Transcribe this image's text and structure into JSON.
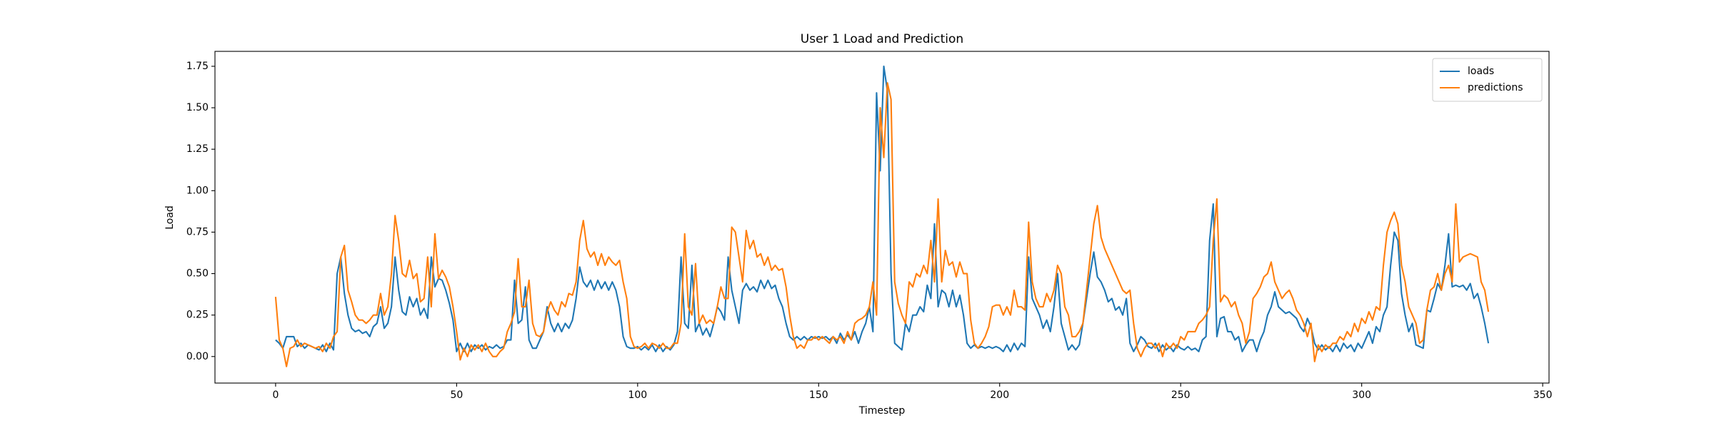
{
  "chart_data": {
    "type": "line",
    "title": "User 1 Load and Prediction",
    "x_label": "Timestep",
    "y_label": "Load",
    "x": [
      0,
      1,
      2,
      3,
      4,
      5,
      6,
      7,
      8,
      9,
      10,
      11,
      12,
      13,
      14,
      15,
      16,
      17,
      18,
      19,
      20,
      21,
      22,
      23,
      24,
      25,
      26,
      27,
      28,
      29,
      30,
      31,
      32,
      33,
      34,
      35,
      36,
      37,
      38,
      39,
      40,
      41,
      42,
      43,
      44,
      45,
      46,
      47,
      48,
      49,
      50,
      51,
      52,
      53,
      54,
      55,
      56,
      57,
      58,
      59,
      60,
      61,
      62,
      63,
      64,
      65,
      66,
      67,
      68,
      69,
      70,
      71,
      72,
      73,
      74,
      75,
      76,
      77,
      78,
      79,
      80,
      81,
      82,
      83,
      84,
      85,
      86,
      87,
      88,
      89,
      90,
      91,
      92,
      93,
      94,
      95,
      96,
      97,
      98,
      99,
      100,
      101,
      102,
      103,
      104,
      105,
      106,
      107,
      108,
      109,
      110,
      111,
      112,
      113,
      114,
      115,
      116,
      117,
      118,
      119,
      120,
      121,
      122,
      123,
      124,
      125,
      126,
      127,
      128,
      129,
      130,
      131,
      132,
      133,
      134,
      135,
      136,
      137,
      138,
      139,
      140,
      141,
      142,
      143,
      144,
      145,
      146,
      147,
      148,
      149,
      150,
      151,
      152,
      153,
      154,
      155,
      156,
      157,
      158,
      159,
      160,
      161,
      162,
      163,
      164,
      165,
      166,
      167,
      168,
      169,
      170,
      171,
      172,
      173,
      174,
      175,
      176,
      177,
      178,
      179,
      180,
      181,
      182,
      183,
      184,
      185,
      186,
      187,
      188,
      189,
      190,
      191,
      192,
      193,
      194,
      195,
      196,
      197,
      198,
      199,
      200,
      201,
      202,
      203,
      204,
      205,
      206,
      207,
      208,
      209,
      210,
      211,
      212,
      213,
      214,
      215,
      216,
      217,
      218,
      219,
      220,
      221,
      222,
      223,
      224,
      225,
      226,
      227,
      228,
      229,
      230,
      231,
      232,
      233,
      234,
      235,
      236,
      237,
      238,
      239,
      240,
      241,
      242,
      243,
      244,
      245,
      246,
      247,
      248,
      249,
      250,
      251,
      252,
      253,
      254,
      255,
      256,
      257,
      258,
      259,
      260,
      261,
      262,
      263,
      264,
      265,
      266,
      267,
      268,
      269,
      270,
      271,
      272,
      273,
      274,
      275,
      276,
      277,
      278,
      279,
      280,
      281,
      282,
      283,
      284,
      285,
      286,
      287,
      288,
      289,
      290,
      291,
      292,
      293,
      294,
      295,
      296,
      297,
      298,
      299,
      300,
      301,
      302,
      303,
      304,
      305,
      306,
      307,
      308,
      309,
      310,
      311,
      312,
      313,
      314,
      315,
      316,
      317,
      318,
      319,
      320,
      321,
      322,
      323,
      324,
      325,
      326,
      327,
      328,
      329,
      330,
      331,
      332,
      333,
      334,
      335
    ],
    "series": [
      {
        "name": "loads",
        "color": "#1f77b4",
        "values": [
          0.1,
          0.08,
          0.05,
          0.12,
          0.12,
          0.12,
          0.06,
          0.08,
          0.05,
          0.07,
          0.06,
          0.05,
          0.04,
          0.07,
          0.03,
          0.08,
          0.04,
          0.5,
          0.6,
          0.38,
          0.25,
          0.17,
          0.15,
          0.16,
          0.14,
          0.15,
          0.12,
          0.18,
          0.2,
          0.3,
          0.17,
          0.2,
          0.3,
          0.6,
          0.4,
          0.27,
          0.25,
          0.36,
          0.3,
          0.35,
          0.25,
          0.29,
          0.23,
          0.6,
          0.42,
          0.47,
          0.46,
          0.4,
          0.32,
          0.22,
          0.03,
          0.08,
          0.03,
          0.08,
          0.03,
          0.07,
          0.05,
          0.07,
          0.04,
          0.06,
          0.05,
          0.07,
          0.05,
          0.06,
          0.1,
          0.1,
          0.46,
          0.2,
          0.22,
          0.42,
          0.1,
          0.05,
          0.05,
          0.1,
          0.15,
          0.3,
          0.2,
          0.15,
          0.2,
          0.15,
          0.2,
          0.17,
          0.22,
          0.35,
          0.54,
          0.45,
          0.42,
          0.46,
          0.4,
          0.46,
          0.41,
          0.45,
          0.4,
          0.45,
          0.4,
          0.3,
          0.12,
          0.06,
          0.05,
          0.05,
          0.06,
          0.04,
          0.06,
          0.04,
          0.07,
          0.03,
          0.07,
          0.03,
          0.06,
          0.04,
          0.07,
          0.15,
          0.6,
          0.2,
          0.17,
          0.55,
          0.15,
          0.2,
          0.13,
          0.17,
          0.12,
          0.2,
          0.3,
          0.27,
          0.22,
          0.6,
          0.4,
          0.3,
          0.2,
          0.4,
          0.44,
          0.4,
          0.42,
          0.39,
          0.46,
          0.41,
          0.46,
          0.41,
          0.43,
          0.35,
          0.3,
          0.2,
          0.12,
          0.1,
          0.12,
          0.1,
          0.12,
          0.1,
          0.12,
          0.11,
          0.12,
          0.11,
          0.12,
          0.1,
          0.12,
          0.08,
          0.14,
          0.1,
          0.13,
          0.1,
          0.15,
          0.08,
          0.15,
          0.2,
          0.3,
          0.15,
          1.59,
          1.12,
          1.75,
          1.6,
          0.5,
          0.08,
          0.06,
          0.04,
          0.2,
          0.15,
          0.25,
          0.25,
          0.3,
          0.27,
          0.43,
          0.35,
          0.8,
          0.3,
          0.4,
          0.38,
          0.3,
          0.4,
          0.3,
          0.37,
          0.25,
          0.08,
          0.05,
          0.07,
          0.05,
          0.06,
          0.05,
          0.06,
          0.05,
          0.06,
          0.05,
          0.03,
          0.07,
          0.03,
          0.08,
          0.04,
          0.08,
          0.06,
          0.6,
          0.35,
          0.3,
          0.25,
          0.17,
          0.22,
          0.15,
          0.3,
          0.5,
          0.2,
          0.12,
          0.04,
          0.07,
          0.04,
          0.07,
          0.2,
          0.35,
          0.5,
          0.63,
          0.48,
          0.45,
          0.4,
          0.33,
          0.35,
          0.28,
          0.3,
          0.25,
          0.35,
          0.08,
          0.03,
          0.07,
          0.12,
          0.1,
          0.06,
          0.05,
          0.08,
          0.03,
          0.07,
          0.04,
          0.06,
          0.03,
          0.07,
          0.05,
          0.04,
          0.06,
          0.04,
          0.05,
          0.03,
          0.1,
          0.12,
          0.7,
          0.92,
          0.12,
          0.23,
          0.24,
          0.15,
          0.15,
          0.1,
          0.12,
          0.03,
          0.07,
          0.1,
          0.1,
          0.03,
          0.1,
          0.15,
          0.25,
          0.3,
          0.39,
          0.3,
          0.28,
          0.26,
          0.27,
          0.25,
          0.23,
          0.18,
          0.15,
          0.23,
          0.18,
          0.08,
          0.04,
          0.07,
          0.04,
          0.06,
          0.03,
          0.07,
          0.03,
          0.08,
          0.05,
          0.07,
          0.03,
          0.08,
          0.05,
          0.1,
          0.15,
          0.08,
          0.18,
          0.15,
          0.25,
          0.3,
          0.55,
          0.75,
          0.7,
          0.38,
          0.25,
          0.15,
          0.2,
          0.07,
          0.06,
          0.05,
          0.28,
          0.27,
          0.35,
          0.44,
          0.4,
          0.55,
          0.74,
          0.42,
          0.43,
          0.42,
          0.43,
          0.4,
          0.44,
          0.35,
          0.38,
          0.3,
          0.2,
          0.08
        ]
      },
      {
        "name": "predictions",
        "color": "#ff7f0e",
        "values": [
          0.36,
          0.1,
          0.05,
          -0.06,
          0.05,
          0.06,
          0.1,
          0.06,
          0.08,
          0.07,
          0.06,
          0.05,
          0.06,
          0.03,
          0.08,
          0.05,
          0.12,
          0.15,
          0.6,
          0.67,
          0.4,
          0.33,
          0.25,
          0.22,
          0.22,
          0.2,
          0.22,
          0.25,
          0.25,
          0.38,
          0.25,
          0.3,
          0.5,
          0.85,
          0.7,
          0.5,
          0.48,
          0.58,
          0.47,
          0.5,
          0.33,
          0.35,
          0.6,
          0.3,
          0.74,
          0.47,
          0.52,
          0.48,
          0.42,
          0.3,
          0.15,
          -0.02,
          0.05,
          0.0,
          0.07,
          0.04,
          0.07,
          0.03,
          0.08,
          0.03,
          0.0,
          0.0,
          0.03,
          0.05,
          0.15,
          0.2,
          0.27,
          0.59,
          0.3,
          0.3,
          0.46,
          0.2,
          0.13,
          0.12,
          0.15,
          0.27,
          0.33,
          0.28,
          0.25,
          0.33,
          0.3,
          0.38,
          0.37,
          0.45,
          0.7,
          0.82,
          0.65,
          0.6,
          0.63,
          0.55,
          0.62,
          0.55,
          0.6,
          0.57,
          0.55,
          0.58,
          0.45,
          0.35,
          0.12,
          0.06,
          0.05,
          0.06,
          0.08,
          0.05,
          0.08,
          0.07,
          0.05,
          0.08,
          0.05,
          0.05,
          0.08,
          0.08,
          0.2,
          0.74,
          0.3,
          0.25,
          0.56,
          0.2,
          0.25,
          0.2,
          0.22,
          0.2,
          0.3,
          0.42,
          0.35,
          0.35,
          0.78,
          0.75,
          0.6,
          0.45,
          0.76,
          0.65,
          0.7,
          0.6,
          0.62,
          0.55,
          0.6,
          0.52,
          0.55,
          0.52,
          0.53,
          0.42,
          0.25,
          0.12,
          0.05,
          0.07,
          0.05,
          0.1,
          0.1,
          0.12,
          0.1,
          0.12,
          0.1,
          0.08,
          0.12,
          0.1,
          0.12,
          0.08,
          0.15,
          0.1,
          0.2,
          0.22,
          0.23,
          0.25,
          0.3,
          0.45,
          0.25,
          1.5,
          1.2,
          1.65,
          1.55,
          0.45,
          0.32,
          0.25,
          0.2,
          0.45,
          0.42,
          0.5,
          0.48,
          0.55,
          0.5,
          0.7,
          0.45,
          0.95,
          0.45,
          0.64,
          0.55,
          0.57,
          0.48,
          0.57,
          0.5,
          0.5,
          0.22,
          0.08,
          0.05,
          0.08,
          0.12,
          0.18,
          0.3,
          0.31,
          0.31,
          0.25,
          0.3,
          0.25,
          0.4,
          0.3,
          0.3,
          0.28,
          0.81,
          0.45,
          0.35,
          0.3,
          0.3,
          0.38,
          0.33,
          0.4,
          0.55,
          0.5,
          0.3,
          0.25,
          0.12,
          0.12,
          0.15,
          0.2,
          0.4,
          0.6,
          0.8,
          0.91,
          0.72,
          0.65,
          0.6,
          0.55,
          0.5,
          0.45,
          0.4,
          0.38,
          0.4,
          0.2,
          0.05,
          0.0,
          0.05,
          0.08,
          0.08,
          0.05,
          0.08,
          0.0,
          0.08,
          0.05,
          0.08,
          0.05,
          0.12,
          0.1,
          0.15,
          0.15,
          0.15,
          0.2,
          0.22,
          0.25,
          0.3,
          0.7,
          0.95,
          0.33,
          0.37,
          0.35,
          0.3,
          0.33,
          0.25,
          0.2,
          0.08,
          0.15,
          0.35,
          0.38,
          0.42,
          0.48,
          0.5,
          0.57,
          0.45,
          0.4,
          0.35,
          0.38,
          0.4,
          0.35,
          0.28,
          0.25,
          0.2,
          0.12,
          0.2,
          -0.03,
          0.07,
          0.03,
          0.07,
          0.05,
          0.08,
          0.08,
          0.12,
          0.1,
          0.15,
          0.12,
          0.2,
          0.15,
          0.23,
          0.2,
          0.27,
          0.22,
          0.3,
          0.28,
          0.55,
          0.75,
          0.82,
          0.87,
          0.8,
          0.55,
          0.45,
          0.3,
          0.25,
          0.2,
          0.08,
          0.1,
          0.28,
          0.4,
          0.42,
          0.5,
          0.4,
          0.5,
          0.55,
          0.45,
          0.92,
          0.57,
          0.6,
          0.61,
          0.62,
          0.61,
          0.6,
          0.45,
          0.4,
          0.27
        ]
      }
    ],
    "xlim": [
      -16.75,
      351.75
    ],
    "ylim": [
      -0.16,
      1.84
    ],
    "xticks": [
      0,
      50,
      100,
      150,
      200,
      250,
      300,
      350
    ],
    "yticks": [
      {
        "value": 0,
        "label": "0.00"
      },
      0.25,
      {
        "value": 0.5,
        "label": "0.50"
      },
      0.75,
      {
        "value": 1,
        "label": "1.00"
      },
      1.25,
      {
        "value": 1.5,
        "label": "1.50"
      },
      1.75
    ],
    "grid": false,
    "legend": "upper right"
  }
}
